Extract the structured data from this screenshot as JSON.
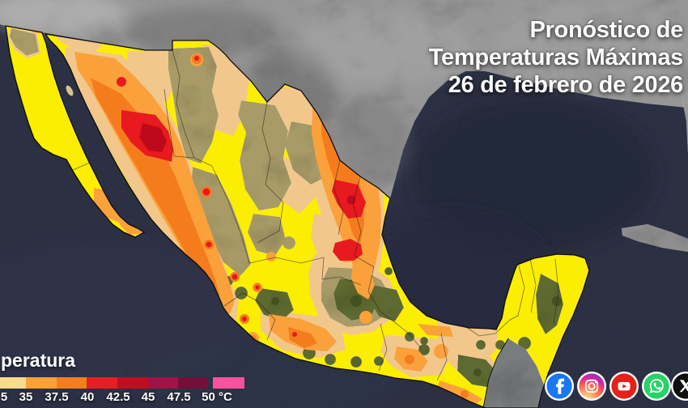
{
  "header": {
    "title_lines": [
      "Pronóstico de",
      "Temperaturas Máximas",
      "26 de febrero de 2026"
    ]
  },
  "legend": {
    "title": "peratura",
    "unit": "°C",
    "tick_labels": [
      "5",
      "35",
      "37.5",
      "40",
      "42.5",
      "45",
      "47.5",
      "50 °C"
    ],
    "segments": [
      "#F8DB8D",
      "#FEA134",
      "#F67D1E",
      "#EB1B23",
      "#C20C20",
      "#A31245",
      "#741038",
      "#F9519D"
    ]
  },
  "map": {
    "colors": {
      "ocean": "#272B3F",
      "us_land_gray": "#979797",
      "yellow": "#FBEE00",
      "tan": "#F2C78C",
      "orange": "#FBA13B",
      "deep_orange": "#F57C1D",
      "red": "#E8191F",
      "dark_red": "#BC0A1C",
      "terrain_khaki": "#A89B68",
      "terrain_olive": "#5E6A31",
      "terrain_dark_green": "#3F4D1F"
    }
  },
  "social": {
    "icons": [
      {
        "name": "facebook",
        "color": "#1877F2"
      },
      {
        "name": "instagram",
        "color": "#D6249F"
      },
      {
        "name": "youtube",
        "color": "#E62117"
      },
      {
        "name": "whatsapp",
        "color": "#25D366"
      },
      {
        "name": "x",
        "color": "#0F0F0F"
      }
    ]
  }
}
